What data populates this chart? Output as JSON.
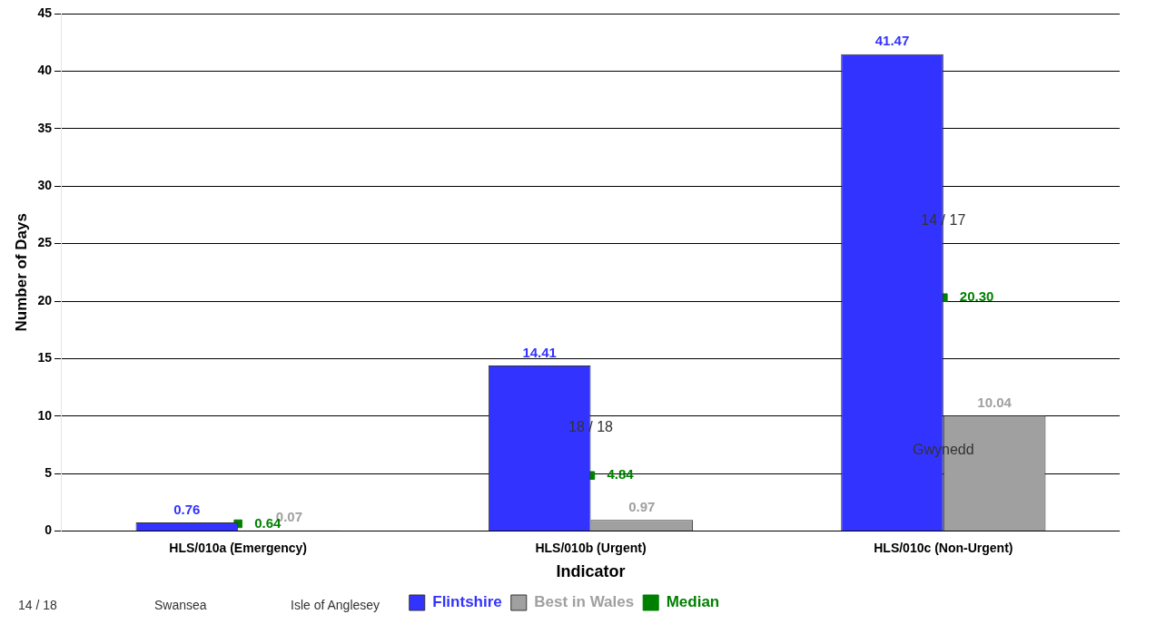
{
  "chart_data": {
    "type": "bar",
    "xlabel": "Indicator",
    "ylabel": "Number of Days",
    "categories": [
      "HLS/010a (Emergency)",
      "HLS/010b (Urgent)",
      "HLS/010c (Non-Urgent)"
    ],
    "series": [
      {
        "name": "Flintshire",
        "color": "#3333ff",
        "values": [
          0.76,
          14.41,
          41.47
        ],
        "value_labels": [
          "0.76",
          "14.41",
          "41.47"
        ]
      },
      {
        "name": "Best in Wales",
        "color": "#a0a0a0",
        "values": [
          0.07,
          0.97,
          10.04
        ],
        "value_labels": [
          "0.07",
          "0.97",
          "10.04"
        ]
      },
      {
        "name": "Median",
        "type": "scatter",
        "color": "#008000",
        "x": [
          "HLS/010a (Emergency)",
          "HLS/010b (Urgent)",
          "HLS/010c (Non-Urgent)"
        ],
        "values": [
          0.64,
          4.84,
          20.3
        ],
        "value_labels": [
          "0.64",
          "4.84",
          "20.30"
        ]
      }
    ],
    "annotations": [
      "14 / 18",
      "Swansea",
      {
        "text": "18 / 18",
        "x": "HLS/010b (Urgent)",
        "y": 9
      },
      "Isle of Anglesey",
      {
        "text": "14 / 17",
        "x": "HLS/010c (Non-Urgent)",
        "y": 27
      },
      {
        "text": "Gwynedd",
        "x": "HLS/010c (Non-Urgent)",
        "y": 7
      }
    ],
    "ylim": [
      0,
      45
    ],
    "yticks": [
      0,
      5,
      10,
      15,
      20,
      25,
      30,
      35,
      40,
      45
    ],
    "grid": "y",
    "legend": "bottom",
    "marker": "square"
  }
}
